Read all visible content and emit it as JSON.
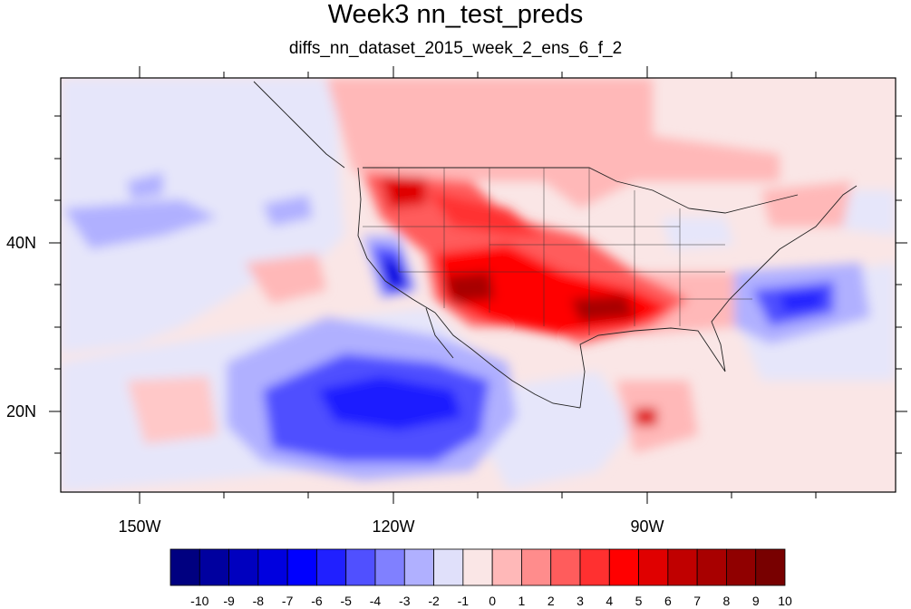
{
  "title": "Week3 nn_test_preds",
  "subtitle": "diffs_nn_dataset_2015_week_2_ens_6_f_2",
  "map": {
    "lon_labels": [
      "150W",
      "120W",
      "90W"
    ],
    "lat_labels": [
      "40N",
      "20N"
    ]
  },
  "colorbar": {
    "labels": [
      "-10",
      "-9",
      "-8",
      "-7",
      "-6",
      "-5",
      "-4",
      "-3",
      "-2",
      "-1",
      "0",
      "1",
      "2",
      "3",
      "4",
      "5",
      "6",
      "7",
      "8",
      "9",
      "10"
    ],
    "colors": [
      "#000080",
      "#00009f",
      "#0000bf",
      "#0000df",
      "#0000ff",
      "#2020ff",
      "#5050ff",
      "#8080ff",
      "#b0b0ff",
      "#e0e0fa",
      "#fae6e6",
      "#ffb8b8",
      "#ff8c8c",
      "#ff5c5c",
      "#ff3030",
      "#ff0000",
      "#e00000",
      "#c00000",
      "#a80000",
      "#900000",
      "#780000"
    ]
  }
}
